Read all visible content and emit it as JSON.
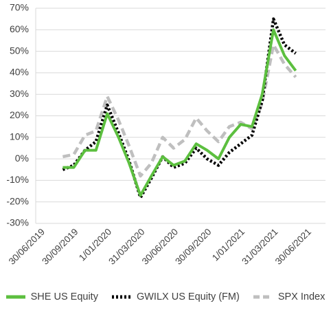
{
  "chart_data": {
    "type": "line",
    "title": "",
    "xlabel": "",
    "ylabel": "",
    "ylim": [
      -30,
      70
    ],
    "y_ticks": [
      "70%",
      "60%",
      "50%",
      "40%",
      "30%",
      "20%",
      "10%",
      "0%",
      "-10%",
      "-20%",
      "-30%"
    ],
    "y_tick_values": [
      70,
      60,
      50,
      40,
      30,
      20,
      10,
      0,
      -10,
      -20,
      -30
    ],
    "x_ticks": [
      "30/06/2019",
      "30/09/2019",
      "1/01/2020",
      "31/03/2020",
      "30/06/2020",
      "30/09/2020",
      "1/01/2021",
      "31/03/2021",
      "30/06/2021"
    ],
    "grid": true,
    "legend_position": "bottom",
    "x": [
      "2019-09-01",
      "2019-10-01",
      "2019-11-01",
      "2019-12-01",
      "2020-01-01",
      "2020-02-01",
      "2020-03-01",
      "2020-04-01",
      "2020-05-01",
      "2020-06-01",
      "2020-07-01",
      "2020-08-01",
      "2020-09-01",
      "2020-10-01",
      "2020-11-01",
      "2020-12-01",
      "2021-01-01",
      "2021-02-01",
      "2021-03-01",
      "2021-04-01",
      "2021-05-01",
      "2021-06-01"
    ],
    "series": [
      {
        "name": "SHE US Equity",
        "color": "#5cbf3f",
        "style": "solid",
        "values": [
          -4,
          -4,
          4,
          4,
          21,
          10,
          -2,
          -17,
          -8,
          1,
          -3,
          -1,
          7,
          4,
          0,
          10,
          16,
          15,
          30,
          60,
          48,
          41
        ]
      },
      {
        "name": "GWILX US Equity (FM)",
        "color": "#000000",
        "style": "dotted",
        "values": [
          -5,
          -3,
          4,
          8,
          25,
          12,
          -1,
          -18,
          -9,
          1,
          -4,
          -2,
          5,
          0,
          -3,
          3,
          7,
          11,
          27,
          65,
          53,
          49
        ]
      },
      {
        "name": "SPX Index",
        "color": "#bfbfbf",
        "style": "dashed",
        "values": [
          1,
          2,
          11,
          13,
          29,
          18,
          6,
          -8,
          -2,
          10,
          5,
          9,
          19,
          13,
          8,
          15,
          17,
          14,
          26,
          53,
          44,
          38
        ]
      }
    ]
  }
}
